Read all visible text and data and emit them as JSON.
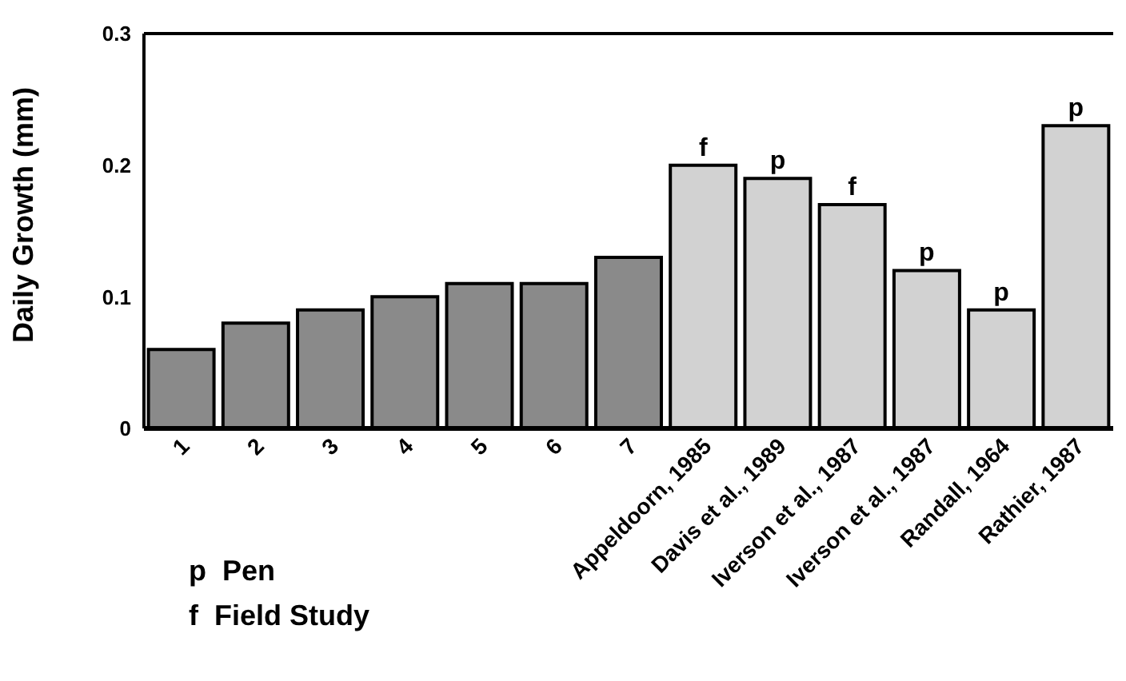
{
  "chart_data": {
    "type": "bar",
    "ylabel": "Daily Growth (mm)",
    "categories": [
      "1",
      "2",
      "3",
      "4",
      "5",
      "6",
      "7",
      "Appeldoorn, 1985",
      "Davis et al., 1989",
      "Iverson et al., 1987",
      "Iverson et al., 1987",
      "Randall, 1964",
      "Rathier, 1987"
    ],
    "values": [
      0.06,
      0.08,
      0.09,
      0.1,
      0.11,
      0.11,
      0.13,
      0.2,
      0.19,
      0.17,
      0.12,
      0.09,
      0.23
    ],
    "colors": [
      "#8a8a8a",
      "#8a8a8a",
      "#8a8a8a",
      "#8a8a8a",
      "#8a8a8a",
      "#8a8a8a",
      "#8a8a8a",
      "#d2d2d2",
      "#d2d2d2",
      "#d2d2d2",
      "#d2d2d2",
      "#d2d2d2",
      "#d2d2d2"
    ],
    "ylim": [
      0,
      0.3
    ],
    "yticks": [
      0,
      0.1,
      0.2,
      0.3
    ],
    "grid": false,
    "legend": false,
    "value_labels": [
      null,
      null,
      null,
      null,
      null,
      null,
      null,
      "f",
      "p",
      "f",
      "p",
      "p",
      "p"
    ],
    "annotations": [
      "p  Pen",
      "f  Field Study"
    ]
  }
}
